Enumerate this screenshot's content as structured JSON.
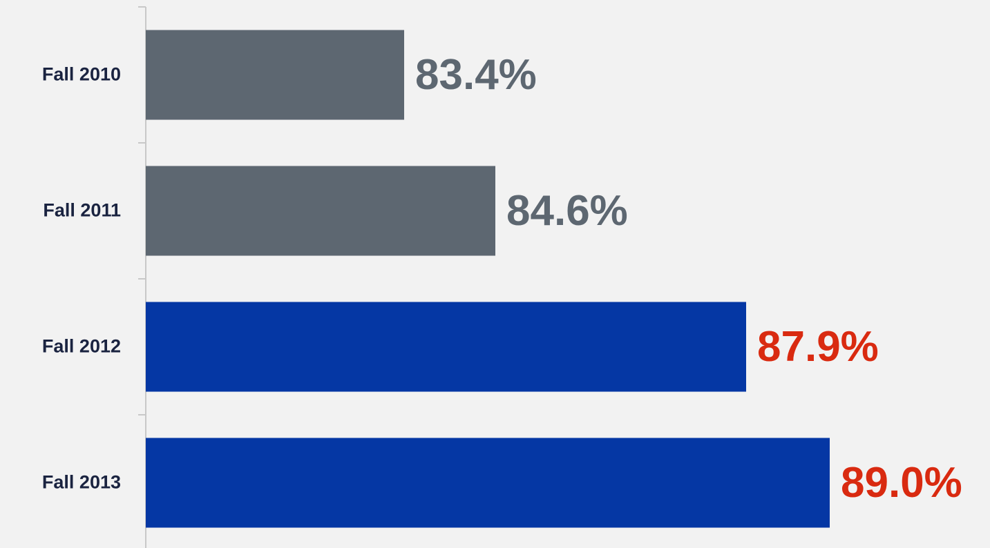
{
  "chart_data": {
    "type": "bar",
    "orientation": "horizontal",
    "categories": [
      "Fall 2010",
      "Fall 2011",
      "Fall 2012",
      "Fall 2013"
    ],
    "values": [
      83.4,
      84.6,
      87.9,
      89.0
    ],
    "value_labels": [
      "83.4%",
      "84.6%",
      "87.9%",
      "89.0%"
    ],
    "colors": [
      "#5d6771",
      "#5d6771",
      "#0537a4",
      "#0537a4"
    ],
    "label_colors": [
      "#5d6771",
      "#5d6771",
      "#d92a10",
      "#d92a10"
    ],
    "xlim": [
      80,
      91
    ]
  }
}
